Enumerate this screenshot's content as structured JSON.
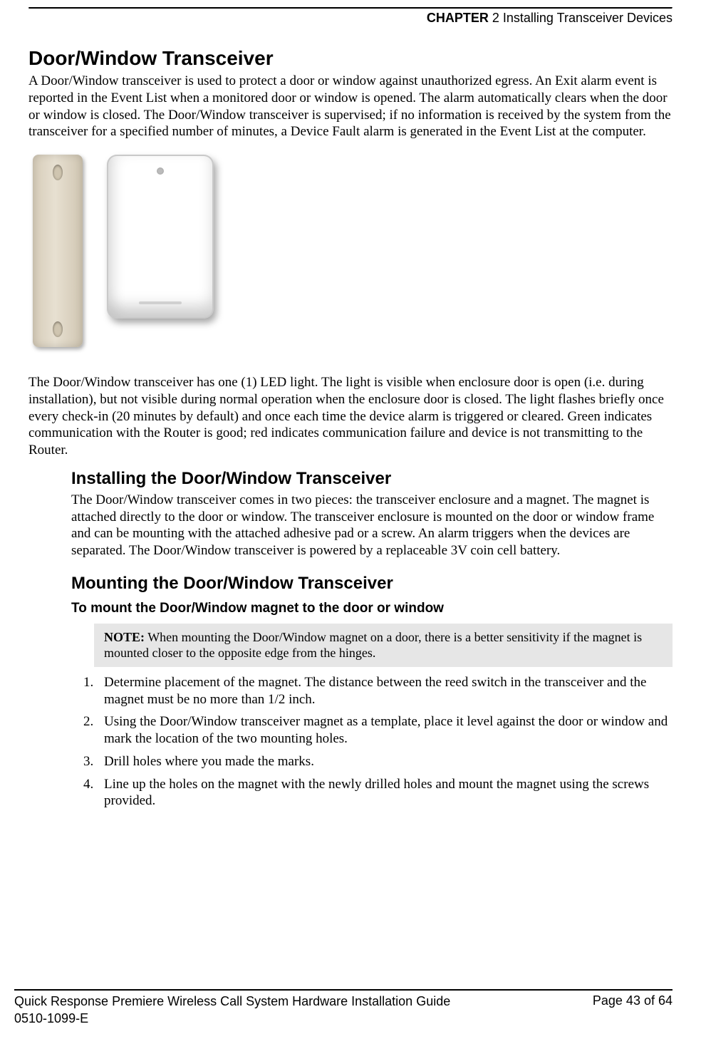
{
  "header": {
    "chapter_bold": "CHAPTER",
    "chapter_rest": " 2 Installing Transceiver Devices"
  },
  "title": "Door/Window Transceiver",
  "intro": "A Door/Window transceiver is used to protect a door or window against unauthorized egress. An Exit alarm event is reported in the Event List when a monitored door or window is opened. The alarm automatically clears when the door or window is closed. The Door/Window transceiver is supervised; if no information is received by the system from the transceiver for a specified number of minutes, a Device Fault alarm is generated in the Event List at the computer.",
  "led_para": "The Door/Window transceiver has one (1) LED light. The light is visible when enclosure door is open (i.e. during installation), but not visible during normal operation when the enclosure door is closed. The light flashes briefly once every check-in (20 minutes by default) and once each time the device alarm is triggered or cleared. Green indicates communication with the Router is good; red indicates communication failure and device is not transmitting to the Router.",
  "install_heading": "Installing the Door/Window Transceiver",
  "install_para": "The Door/Window transceiver comes in two pieces: the transceiver enclosure and a magnet. The magnet is attached directly to the door or window. The transceiver enclosure is mounted on the door or window frame and can be mounting with the attached adhesive pad or a screw. An alarm triggers when the devices are separated. The Door/Window transceiver is powered by a replaceable 3V coin cell battery.",
  "mount_heading": "Mounting the Door/Window Transceiver",
  "task_heading": "To mount the Door/Window magnet to the door or window",
  "note_label": "NOTE:",
  "note_text": " When mounting the Door/Window magnet on a door, there is a better sensitivity if the magnet is mounted closer to the opposite edge from the hinges.",
  "steps": [
    "Determine placement of the magnet. The distance between the reed switch in the transceiver and the magnet must be no more than 1/2 inch.",
    "Using the Door/Window transceiver magnet as a template, place it level against the door or window and mark the location of the two mounting holes.",
    "Drill holes where you made the marks.",
    "Line up the holes on the magnet with the newly drilled holes and mount the magnet using the screws provided."
  ],
  "footer": {
    "guide": "Quick Response Premiere Wireless Call System Hardware Installation Guide",
    "doc_no": "0510-1099-E",
    "page": "Page 43 of 64"
  }
}
